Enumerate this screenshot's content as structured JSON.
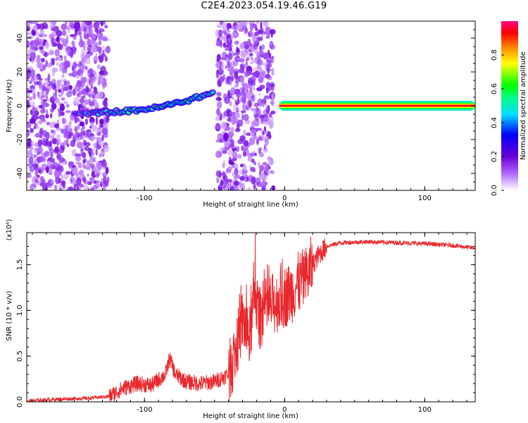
{
  "title": "C2E4.2023.054.19.46.G19",
  "colors": {
    "snr_line": "#e8282d",
    "background": "#ffffff",
    "axis": "#000000"
  },
  "chart_data": [
    {
      "type": "heatmap",
      "title": "C2E4.2023.054.19.46.G19",
      "xlabel": "Height of straight line (km)",
      "ylabel": "Frequency (Hz)",
      "xlim": [
        -184,
        136
      ],
      "ylim": [
        -50,
        50
      ],
      "xticks": [
        -100,
        0,
        100
      ],
      "yticks": [
        -40,
        -20,
        0,
        20,
        40
      ],
      "colorbar": {
        "label": "Normalized spectral amplitude",
        "range": [
          0,
          1
        ],
        "ticks": [
          "0.0",
          "0.2",
          "0.4",
          "0.6",
          "0.8"
        ],
        "colormap": "rainbow (white → purple → blue → cyan → green → yellow → orange → red → magenta)"
      },
      "features": [
        {
          "name": "noise_region",
          "x_range": [
            -184,
            -126
          ],
          "freq_range": [
            -50,
            50
          ],
          "amplitude": [
            0.05,
            0.2
          ]
        },
        {
          "name": "drifting_signal",
          "x": [
            -150,
            -130,
            -110,
            -90,
            -70,
            -50
          ],
          "freq": [
            -5,
            -4,
            -3,
            -1,
            3,
            8
          ],
          "amplitude": [
            0.25,
            0.35,
            0.45,
            0.45,
            0.5,
            0.4
          ]
        },
        {
          "name": "noise_region",
          "x_range": [
            -48,
            -8
          ],
          "freq_range": [
            -50,
            50
          ],
          "amplitude": [
            0.05,
            0.2
          ]
        },
        {
          "name": "steady_tone",
          "x_range": [
            -4,
            136
          ],
          "freq": 0,
          "amplitude": 0.95
        }
      ]
    },
    {
      "type": "line",
      "xlabel": "Height of straight line (km)",
      "ylabel": "SNR (10 * v/v)",
      "yscale_label": "(x10⁴)",
      "xlim": [
        -184,
        136
      ],
      "ylim": [
        0,
        1.85
      ],
      "xticks": [
        -100,
        0,
        100
      ],
      "yticks": [
        "0.0",
        "0.5",
        "1.0",
        "1.5"
      ],
      "x": [
        -184,
        -160,
        -140,
        -125,
        -115,
        -105,
        -95,
        -85,
        -82,
        -78,
        -70,
        -60,
        -50,
        -40,
        -35,
        -30,
        -25,
        -21,
        -18,
        -15,
        -10,
        -5,
        0,
        5,
        10,
        15,
        20,
        25,
        30,
        40,
        60,
        80,
        100,
        120,
        136
      ],
      "values": [
        0.01,
        0.03,
        0.04,
        0.06,
        0.15,
        0.2,
        0.18,
        0.3,
        0.48,
        0.3,
        0.22,
        0.2,
        0.22,
        0.3,
        0.55,
        0.9,
        0.7,
        1.2,
        0.9,
        1.0,
        1.05,
        1.1,
        1.15,
        1.2,
        1.3,
        1.35,
        1.5,
        1.62,
        1.7,
        1.74,
        1.75,
        1.74,
        1.73,
        1.71,
        1.68
      ],
      "spikes": {
        "x": [
          -21
        ],
        "values": [
          1.85
        ]
      }
    }
  ]
}
